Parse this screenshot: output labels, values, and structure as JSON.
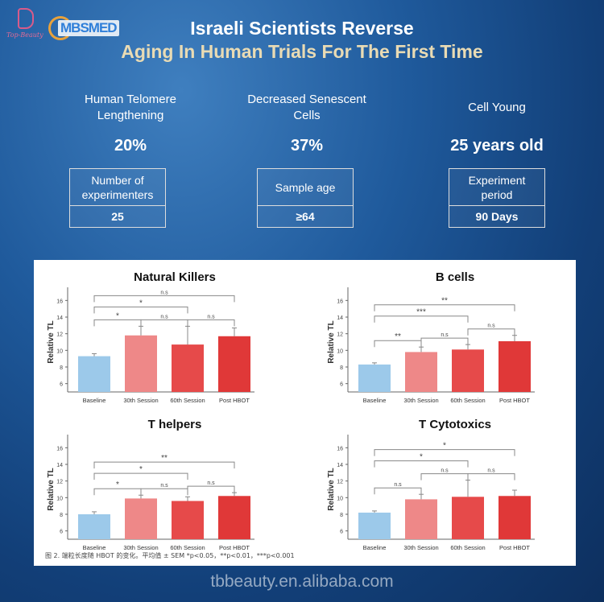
{
  "logos": {
    "left_brand": "Top-Beauty",
    "right_brand": "MBSMED"
  },
  "title": {
    "line1": "Israeli Scientists Reverse",
    "line2": "Aging In Human Trials For The First Time"
  },
  "stats": [
    {
      "label": "Human Telomere Lengthening",
      "value": "20%",
      "box_label": "Number of experimenters",
      "box_value": "25"
    },
    {
      "label": "Decreased Senescent Cells",
      "value": "37%",
      "box_label": "Sample age",
      "box_value": "≥64"
    },
    {
      "label": "Cell Young",
      "value": "25 years old",
      "box_label": "Experiment period",
      "box_value": "90 Days"
    }
  ],
  "chart_data": [
    {
      "type": "bar",
      "title": "Natural Killers",
      "ylabel": "Relative TL",
      "categories": [
        "Baseline",
        "30th Session",
        "60th Session",
        "Post HBOT"
      ],
      "values": [
        9.3,
        11.8,
        10.7,
        11.7
      ],
      "errors": [
        0.3,
        1.1,
        2.2,
        1.0
      ],
      "yticks": [
        6,
        8,
        10,
        12,
        14,
        16
      ],
      "ylim": [
        5,
        17
      ],
      "significance": [
        {
          "from": 0,
          "to": 1,
          "label": "*"
        },
        {
          "from": 1,
          "to": 2,
          "label": "n.s"
        },
        {
          "from": 2,
          "to": 3,
          "label": "n.s"
        },
        {
          "from": 0,
          "to": 2,
          "label": "*"
        },
        {
          "from": 0,
          "to": 3,
          "label": "n.s"
        }
      ]
    },
    {
      "type": "bar",
      "title": "B cells",
      "ylabel": "Relative TL",
      "categories": [
        "Baseline",
        "30th Session",
        "60th Session",
        "Post HBOT"
      ],
      "values": [
        8.3,
        9.8,
        10.1,
        11.1
      ],
      "errors": [
        0.2,
        0.6,
        0.6,
        0.7
      ],
      "yticks": [
        6,
        8,
        10,
        12,
        14,
        16
      ],
      "ylim": [
        5,
        17
      ],
      "significance": [
        {
          "from": 0,
          "to": 1,
          "label": "**"
        },
        {
          "from": 1,
          "to": 2,
          "label": "n.s"
        },
        {
          "from": 2,
          "to": 3,
          "label": "n.s"
        },
        {
          "from": 0,
          "to": 2,
          "label": "***"
        },
        {
          "from": 0,
          "to": 3,
          "label": "**"
        }
      ]
    },
    {
      "type": "bar",
      "title": "T helpers",
      "ylabel": "Relative TL",
      "categories": [
        "Baseline",
        "30th Session",
        "60th Session",
        "Post HBOT"
      ],
      "values": [
        8.0,
        9.9,
        9.6,
        10.2
      ],
      "errors": [
        0.3,
        0.4,
        0.5,
        0.4
      ],
      "yticks": [
        6,
        8,
        10,
        12,
        14,
        16
      ],
      "ylim": [
        5,
        17
      ],
      "significance": [
        {
          "from": 0,
          "to": 1,
          "label": "*"
        },
        {
          "from": 1,
          "to": 2,
          "label": "n.s"
        },
        {
          "from": 2,
          "to": 3,
          "label": "n.s"
        },
        {
          "from": 0,
          "to": 2,
          "label": "*"
        },
        {
          "from": 0,
          "to": 3,
          "label": "**"
        }
      ]
    },
    {
      "type": "bar",
      "title": "T Cytotoxics",
      "ylabel": "Relative TL",
      "categories": [
        "Baseline",
        "30th Session",
        "60th Session",
        "Post HBOT"
      ],
      "values": [
        8.2,
        9.8,
        10.1,
        10.2
      ],
      "errors": [
        0.2,
        0.6,
        2.0,
        0.7
      ],
      "yticks": [
        6,
        8,
        10,
        12,
        14,
        16
      ],
      "ylim": [
        5,
        17
      ],
      "significance": [
        {
          "from": 0,
          "to": 1,
          "label": "n.s"
        },
        {
          "from": 1,
          "to": 2,
          "label": "n.s"
        },
        {
          "from": 2,
          "to": 3,
          "label": "n.s"
        },
        {
          "from": 0,
          "to": 2,
          "label": "*"
        },
        {
          "from": 0,
          "to": 3,
          "label": "*"
        }
      ]
    }
  ],
  "bar_colors": [
    "#9cc9ea",
    "#ee8888",
    "#e64a4a",
    "#e03838"
  ],
  "caption": "图 2. 端粒长度随 HBOT 的变化。平均值 ± SEM *p<0.05，**p<0.01，***p<0.001",
  "footer": "tbbeauty.en.alibaba.com"
}
